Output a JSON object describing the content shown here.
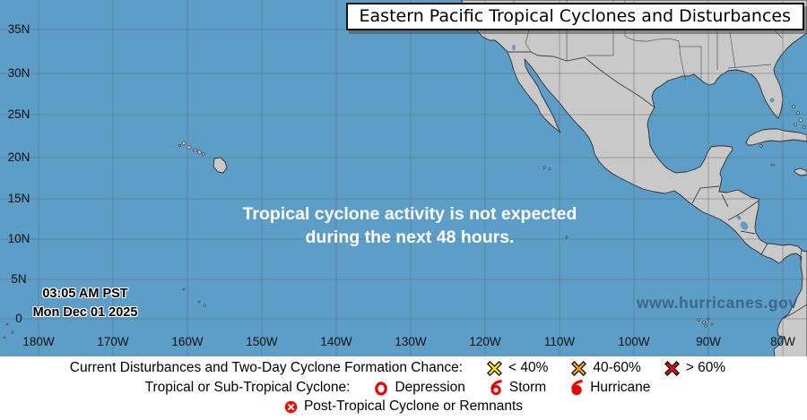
{
  "title": "Eastern Pacific Tropical Cyclones and Disturbances",
  "map": {
    "message": [
      "Tropical cyclone activity is not expected",
      "during the next 48 hours."
    ],
    "timestamp": [
      "03:05 AM PST",
      "Mon Dec 01 2025"
    ],
    "watermark": "www.hurricanes.gov",
    "lat_labels": [
      "35N",
      "30N",
      "25N",
      "20N",
      "15N",
      "10N",
      "5N",
      "0"
    ],
    "lon_labels": [
      "180W",
      "170W",
      "160W",
      "150W",
      "140W",
      "130W",
      "120W",
      "110W",
      "100W",
      "90W",
      "80W"
    ]
  },
  "legend": {
    "formation_label": "Current Disturbances and Two-Day Cyclone Formation Chance:",
    "formation_items": [
      {
        "icon": "x-mark-yellow",
        "color": "#ffe60a",
        "label": "< 40%"
      },
      {
        "icon": "x-mark-orange",
        "color": "#ffa20d",
        "label": "40-60%"
      },
      {
        "icon": "x-mark-red",
        "color": "#e01300",
        "label": "> 60%"
      }
    ],
    "cyclone_label": "Tropical or Sub-Tropical Cyclone:",
    "cyclone_items": [
      {
        "icon": "depression-circle",
        "label": "Depression"
      },
      {
        "icon": "storm-symbol",
        "label": "Storm"
      },
      {
        "icon": "hurricane-symbol",
        "label": "Hurricane"
      }
    ],
    "post_item": {
      "icon": "circled-x",
      "label": "Post-Tropical Cyclone or Remnants"
    }
  },
  "colors": {
    "ocean": "#5c9ec8",
    "land": "#c9c9c9",
    "coastline": "#2e2e2e",
    "grid": "rgba(88,100,110,0.45)",
    "legend_red": "#ec0000",
    "formation_yellow": "#ffe60a",
    "formation_orange": "#ffa20d",
    "formation_red": "#e01300",
    "watermark_color": "#3d6787"
  }
}
